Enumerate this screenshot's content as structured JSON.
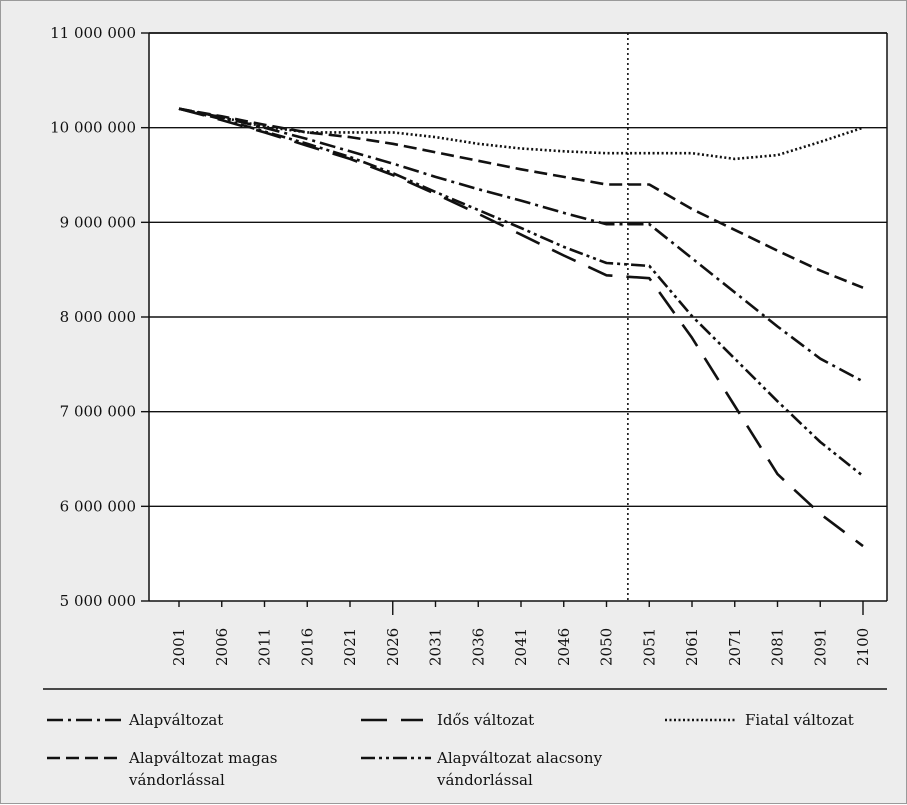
{
  "chart_data": {
    "type": "line",
    "title": "",
    "xlabel": "",
    "ylabel": "",
    "categories": [
      "2001",
      "2006",
      "2011",
      "2016",
      "2021",
      "2026",
      "2031",
      "2036",
      "2041",
      "2046",
      "2050",
      "2051",
      "2061",
      "2071",
      "2081",
      "2091",
      "2100"
    ],
    "ylim": [
      5000000,
      11000000
    ],
    "yticks": [
      5000000,
      6000000,
      7000000,
      8000000,
      9000000,
      10000000,
      11000000
    ],
    "ytick_labels": [
      "5 000 000",
      "6 000 000",
      "7 000 000",
      "8 000 000",
      "9 000 000",
      "10 000 000",
      "11 000 000"
    ],
    "grid": "horizontal",
    "divider_after": "2050",
    "legend_position": "bottom",
    "series": [
      {
        "name": "Alapváltozat",
        "dash": "dash-dot",
        "color": "#111111",
        "values": [
          10200000,
          10110000,
          10000000,
          9880000,
          9750000,
          9620000,
          9480000,
          9350000,
          9230000,
          9100000,
          8980000,
          8980000,
          8620000,
          8260000,
          7900000,
          7560000,
          7320000
        ]
      },
      {
        "name": "Idős változat",
        "dash": "long-dash",
        "color": "#111111",
        "values": [
          10200000,
          10080000,
          9950000,
          9810000,
          9670000,
          9500000,
          9300000,
          9090000,
          8870000,
          8650000,
          8440000,
          8410000,
          7780000,
          7060000,
          6340000,
          5920000,
          5580000
        ]
      },
      {
        "name": "Fiatal változat",
        "dash": "dotted",
        "color": "#111111",
        "values": [
          10200000,
          10110000,
          10010000,
          9950000,
          9950000,
          9950000,
          9900000,
          9830000,
          9780000,
          9750000,
          9730000,
          9730000,
          9730000,
          9670000,
          9710000,
          9850000,
          10000000
        ]
      },
      {
        "name": "Alapváltozat magas vándorlással",
        "dash": "dash",
        "color": "#111111",
        "values": [
          10200000,
          10120000,
          10030000,
          9950000,
          9900000,
          9830000,
          9740000,
          9650000,
          9560000,
          9480000,
          9400000,
          9400000,
          9140000,
          8920000,
          8700000,
          8490000,
          8310000
        ]
      },
      {
        "name": "Alapváltozat alacsony vándorlással",
        "dash": "dash-dot-dot",
        "color": "#111111",
        "values": [
          10200000,
          10090000,
          9960000,
          9830000,
          9690000,
          9520000,
          9320000,
          9130000,
          8940000,
          8740000,
          8570000,
          8540000,
          8010000,
          7560000,
          7110000,
          6680000,
          6320000
        ]
      }
    ]
  }
}
